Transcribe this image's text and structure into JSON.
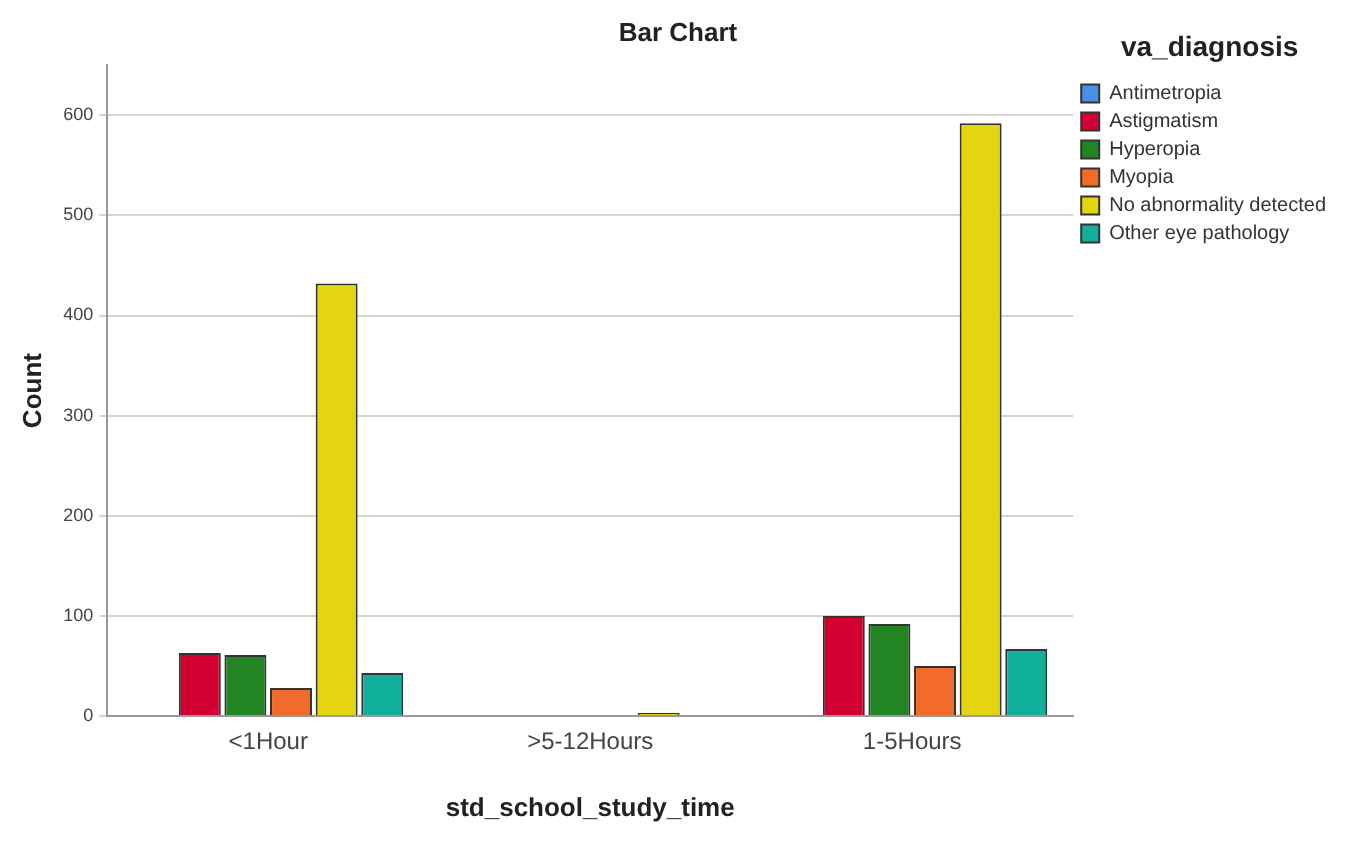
{
  "chart_data": {
    "type": "bar",
    "title": "Bar Chart",
    "xlabel": "std_school_study_time",
    "ylabel": "Count",
    "legend_title": "va_diagnosis",
    "categories": [
      "<1Hour",
      ">5-12Hours",
      "1-5Hours"
    ],
    "series": [
      {
        "name": "Antimetropia",
        "color": "#4a90e2",
        "values": [
          1,
          0,
          0
        ]
      },
      {
        "name": "Astigmatism",
        "color": "#d50032",
        "values": [
          63,
          0,
          100
        ]
      },
      {
        "name": "Hyperopia",
        "color": "#238423",
        "values": [
          61,
          0,
          92
        ]
      },
      {
        "name": "Myopia",
        "color": "#f26b2a",
        "values": [
          28,
          0,
          50
        ]
      },
      {
        "name": "No abnormality detected",
        "color": "#e3d510",
        "values": [
          432,
          3,
          592
        ]
      },
      {
        "name": "Other eye pathology",
        "color": "#10b09a",
        "values": [
          43,
          0,
          67
        ]
      }
    ],
    "ylim": [
      0,
      650
    ],
    "yticks": [
      0,
      100,
      200,
      300,
      400,
      500,
      600
    ],
    "grid": "y",
    "legend": "right"
  }
}
